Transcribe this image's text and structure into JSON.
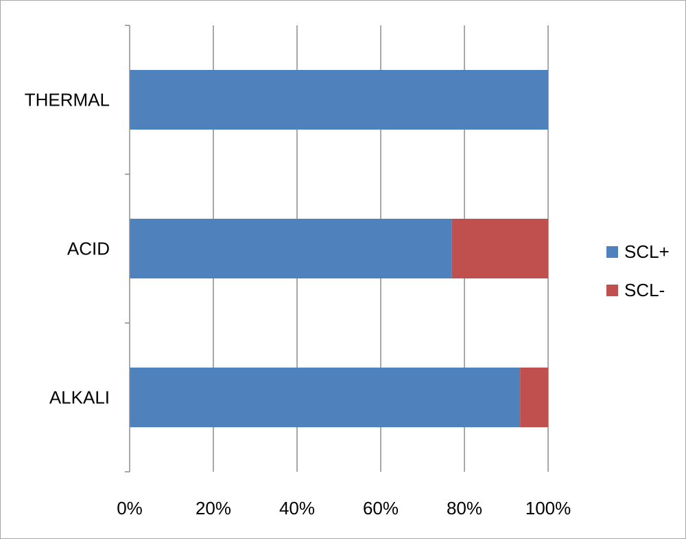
{
  "chart_data": {
    "type": "bar",
    "orientation": "horizontal",
    "stacked": "percent",
    "categories": [
      "THERMAL",
      "ACID",
      "ALKALI"
    ],
    "series": [
      {
        "name": "SCL+",
        "values": [
          100,
          77,
          93.3
        ],
        "color": "#4F81BD"
      },
      {
        "name": "SCL-",
        "values": [
          0,
          23,
          6.7
        ],
        "color": "#C0504D"
      }
    ],
    "x_ticks": [
      "0%",
      "20%",
      "40%",
      "60%",
      "80%",
      "100%"
    ],
    "xlim": [
      0,
      100
    ],
    "title": "",
    "xlabel": "",
    "ylabel": "",
    "grid": "vertical",
    "legend_position": "right"
  }
}
